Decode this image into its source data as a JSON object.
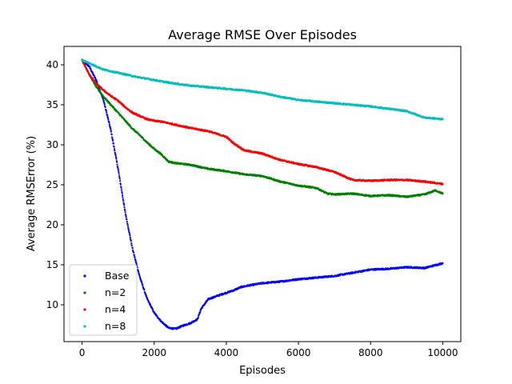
{
  "chart_data": {
    "type": "scatter",
    "title": "Average RMSE Over Episodes",
    "xlabel": "Episodes",
    "ylabel": "Average RMSError (%)",
    "xlim": [
      -500,
      10500
    ],
    "ylim": [
      5.4,
      42.3
    ],
    "x_ticks": [
      0,
      2000,
      4000,
      6000,
      8000,
      10000
    ],
    "x_tick_labels": [
      "0",
      "2000",
      "4000",
      "6000",
      "8000",
      "10000"
    ],
    "y_ticks": [
      10,
      15,
      20,
      25,
      30,
      35,
      40
    ],
    "y_tick_labels": [
      "10",
      "15",
      "20",
      "25",
      "30",
      "35",
      "40"
    ],
    "grid": false,
    "legend_position": "lower-left",
    "series": [
      {
        "name": "Base",
        "color": "#0000ff",
        "points": [
          [
            0,
            40.6
          ],
          [
            200,
            39.8
          ],
          [
            400,
            38.0
          ],
          [
            600,
            35.5
          ],
          [
            800,
            31.8
          ],
          [
            1000,
            27.0
          ],
          [
            1200,
            21.5
          ],
          [
            1400,
            17.0
          ],
          [
            1600,
            13.5
          ],
          [
            1800,
            10.8
          ],
          [
            2000,
            9.0
          ],
          [
            2200,
            7.9
          ],
          [
            2400,
            7.1
          ],
          [
            2600,
            7.0
          ],
          [
            2800,
            7.4
          ],
          [
            3000,
            7.7
          ],
          [
            3200,
            8.2
          ],
          [
            3300,
            9.5
          ],
          [
            3500,
            10.7
          ],
          [
            3800,
            11.2
          ],
          [
            4000,
            11.5
          ],
          [
            4200,
            11.8
          ],
          [
            4400,
            12.2
          ],
          [
            4600,
            12.4
          ],
          [
            5000,
            12.7
          ],
          [
            5500,
            12.9
          ],
          [
            6000,
            13.2
          ],
          [
            6500,
            13.4
          ],
          [
            7000,
            13.6
          ],
          [
            7500,
            14.0
          ],
          [
            8000,
            14.4
          ],
          [
            8500,
            14.5
          ],
          [
            9000,
            14.7
          ],
          [
            9500,
            14.6
          ],
          [
            10000,
            15.2
          ]
        ]
      },
      {
        "name": "n=2",
        "color": "#008000",
        "points": [
          [
            0,
            40.6
          ],
          [
            200,
            38.8
          ],
          [
            400,
            37.2
          ],
          [
            600,
            36.0
          ],
          [
            800,
            35.0
          ],
          [
            1000,
            34.0
          ],
          [
            1200,
            33.0
          ],
          [
            1400,
            32.0
          ],
          [
            1600,
            31.2
          ],
          [
            1800,
            30.3
          ],
          [
            2000,
            29.5
          ],
          [
            2200,
            28.8
          ],
          [
            2400,
            27.9
          ],
          [
            2600,
            27.7
          ],
          [
            3000,
            27.5
          ],
          [
            3500,
            27.0
          ],
          [
            4000,
            26.7
          ],
          [
            4500,
            26.3
          ],
          [
            5000,
            26.1
          ],
          [
            5500,
            25.4
          ],
          [
            6000,
            24.9
          ],
          [
            6500,
            24.6
          ],
          [
            6800,
            23.9
          ],
          [
            7000,
            23.8
          ],
          [
            7500,
            23.9
          ],
          [
            8000,
            23.6
          ],
          [
            8500,
            23.7
          ],
          [
            9000,
            23.5
          ],
          [
            9500,
            23.8
          ],
          [
            9800,
            24.3
          ],
          [
            10000,
            23.9
          ]
        ]
      },
      {
        "name": "n=4",
        "color": "#ff0000",
        "points": [
          [
            0,
            40.6
          ],
          [
            200,
            38.8
          ],
          [
            400,
            37.6
          ],
          [
            600,
            36.8
          ],
          [
            800,
            36.1
          ],
          [
            1000,
            35.5
          ],
          [
            1200,
            34.7
          ],
          [
            1400,
            34.0
          ],
          [
            1600,
            33.6
          ],
          [
            1800,
            33.2
          ],
          [
            2000,
            33.0
          ],
          [
            2200,
            32.9
          ],
          [
            2500,
            32.6
          ],
          [
            3000,
            32.1
          ],
          [
            3500,
            31.7
          ],
          [
            4000,
            31.0
          ],
          [
            4200,
            30.2
          ],
          [
            4500,
            29.3
          ],
          [
            5000,
            28.9
          ],
          [
            5500,
            28.1
          ],
          [
            6000,
            27.6
          ],
          [
            6500,
            27.2
          ],
          [
            7000,
            26.6
          ],
          [
            7500,
            25.6
          ],
          [
            8000,
            25.5
          ],
          [
            8500,
            25.6
          ],
          [
            9000,
            25.6
          ],
          [
            9500,
            25.4
          ],
          [
            10000,
            25.1
          ]
        ]
      },
      {
        "name": "n=8",
        "color": "#00bfbf",
        "points": [
          [
            0,
            40.6
          ],
          [
            300,
            40.0
          ],
          [
            600,
            39.4
          ],
          [
            1000,
            39.0
          ],
          [
            1500,
            38.5
          ],
          [
            2000,
            38.1
          ],
          [
            2500,
            37.7
          ],
          [
            3000,
            37.4
          ],
          [
            3500,
            37.2
          ],
          [
            4000,
            37.0
          ],
          [
            4500,
            36.8
          ],
          [
            5000,
            36.5
          ],
          [
            5500,
            36.0
          ],
          [
            6000,
            35.6
          ],
          [
            6500,
            35.4
          ],
          [
            7000,
            35.2
          ],
          [
            7500,
            35.0
          ],
          [
            8000,
            34.8
          ],
          [
            8500,
            34.5
          ],
          [
            9000,
            34.2
          ],
          [
            9500,
            33.4
          ],
          [
            10000,
            33.2
          ]
        ]
      }
    ]
  }
}
